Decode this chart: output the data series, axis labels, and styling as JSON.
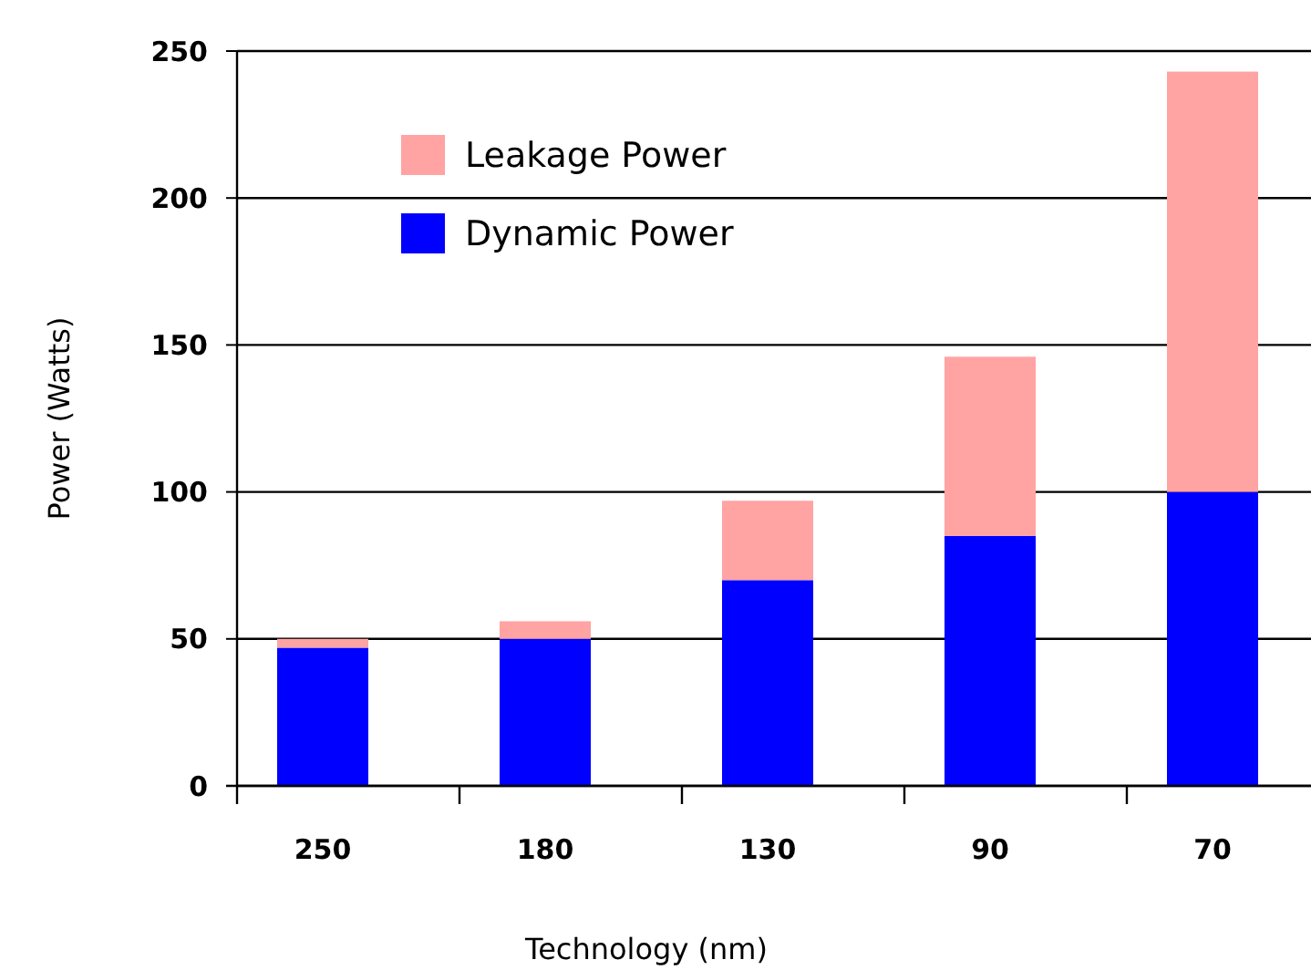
{
  "chart_data": {
    "type": "bar",
    "xlabel": "Technology (nm)",
    "ylabel": "Power (Watts)",
    "categories": [
      "250",
      "180",
      "130",
      "90",
      "70"
    ],
    "stacked": true,
    "ylim": [
      0,
      250
    ],
    "yticks": [
      0,
      50,
      100,
      150,
      200,
      250
    ],
    "grid": "y",
    "legend": "top left",
    "series": [
      {
        "name": "Dynamic Power",
        "color": "#0000ff",
        "values": [
          47,
          50,
          70,
          85,
          100
        ]
      },
      {
        "name": "Leakage Power",
        "color": "#ffa3a3",
        "values": [
          3,
          6,
          27,
          61,
          143
        ]
      }
    ]
  }
}
